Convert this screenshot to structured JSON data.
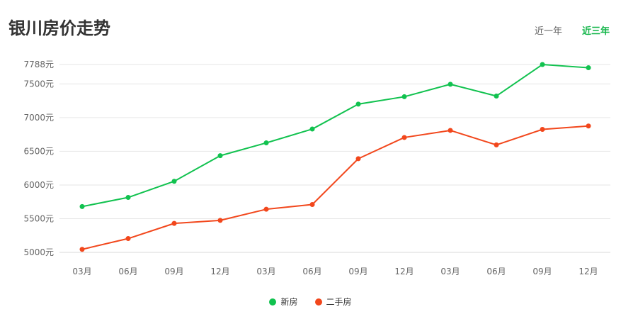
{
  "title": "银川房价走势",
  "tabs": [
    {
      "label": "近一年",
      "active": false
    },
    {
      "label": "近三年",
      "active": true
    }
  ],
  "chart_data": {
    "type": "line",
    "categories": [
      "03月",
      "06月",
      "09月",
      "12月",
      "03月",
      "06月",
      "09月",
      "12月",
      "03月",
      "06月",
      "09月",
      "12月"
    ],
    "yticks": [
      5000,
      5500,
      6000,
      6500,
      7000,
      7500,
      7788
    ],
    "ytick_labels": [
      "5000元",
      "5500元",
      "6000元",
      "6500元",
      "7000元",
      "7500元",
      "7788元"
    ],
    "ylim": [
      5000,
      7788
    ],
    "grid": true,
    "legend_position": "bottom",
    "series": [
      {
        "name": "新房",
        "color": "#11c24f",
        "values": [
          5680,
          5815,
          6055,
          6435,
          6625,
          6830,
          7200,
          7310,
          7495,
          7320,
          7788,
          7740
        ]
      },
      {
        "name": "二手房",
        "color": "#f2471c",
        "values": [
          5045,
          5205,
          5430,
          5475,
          5640,
          5710,
          6390,
          6705,
          6810,
          6595,
          6825,
          6875
        ]
      }
    ]
  }
}
